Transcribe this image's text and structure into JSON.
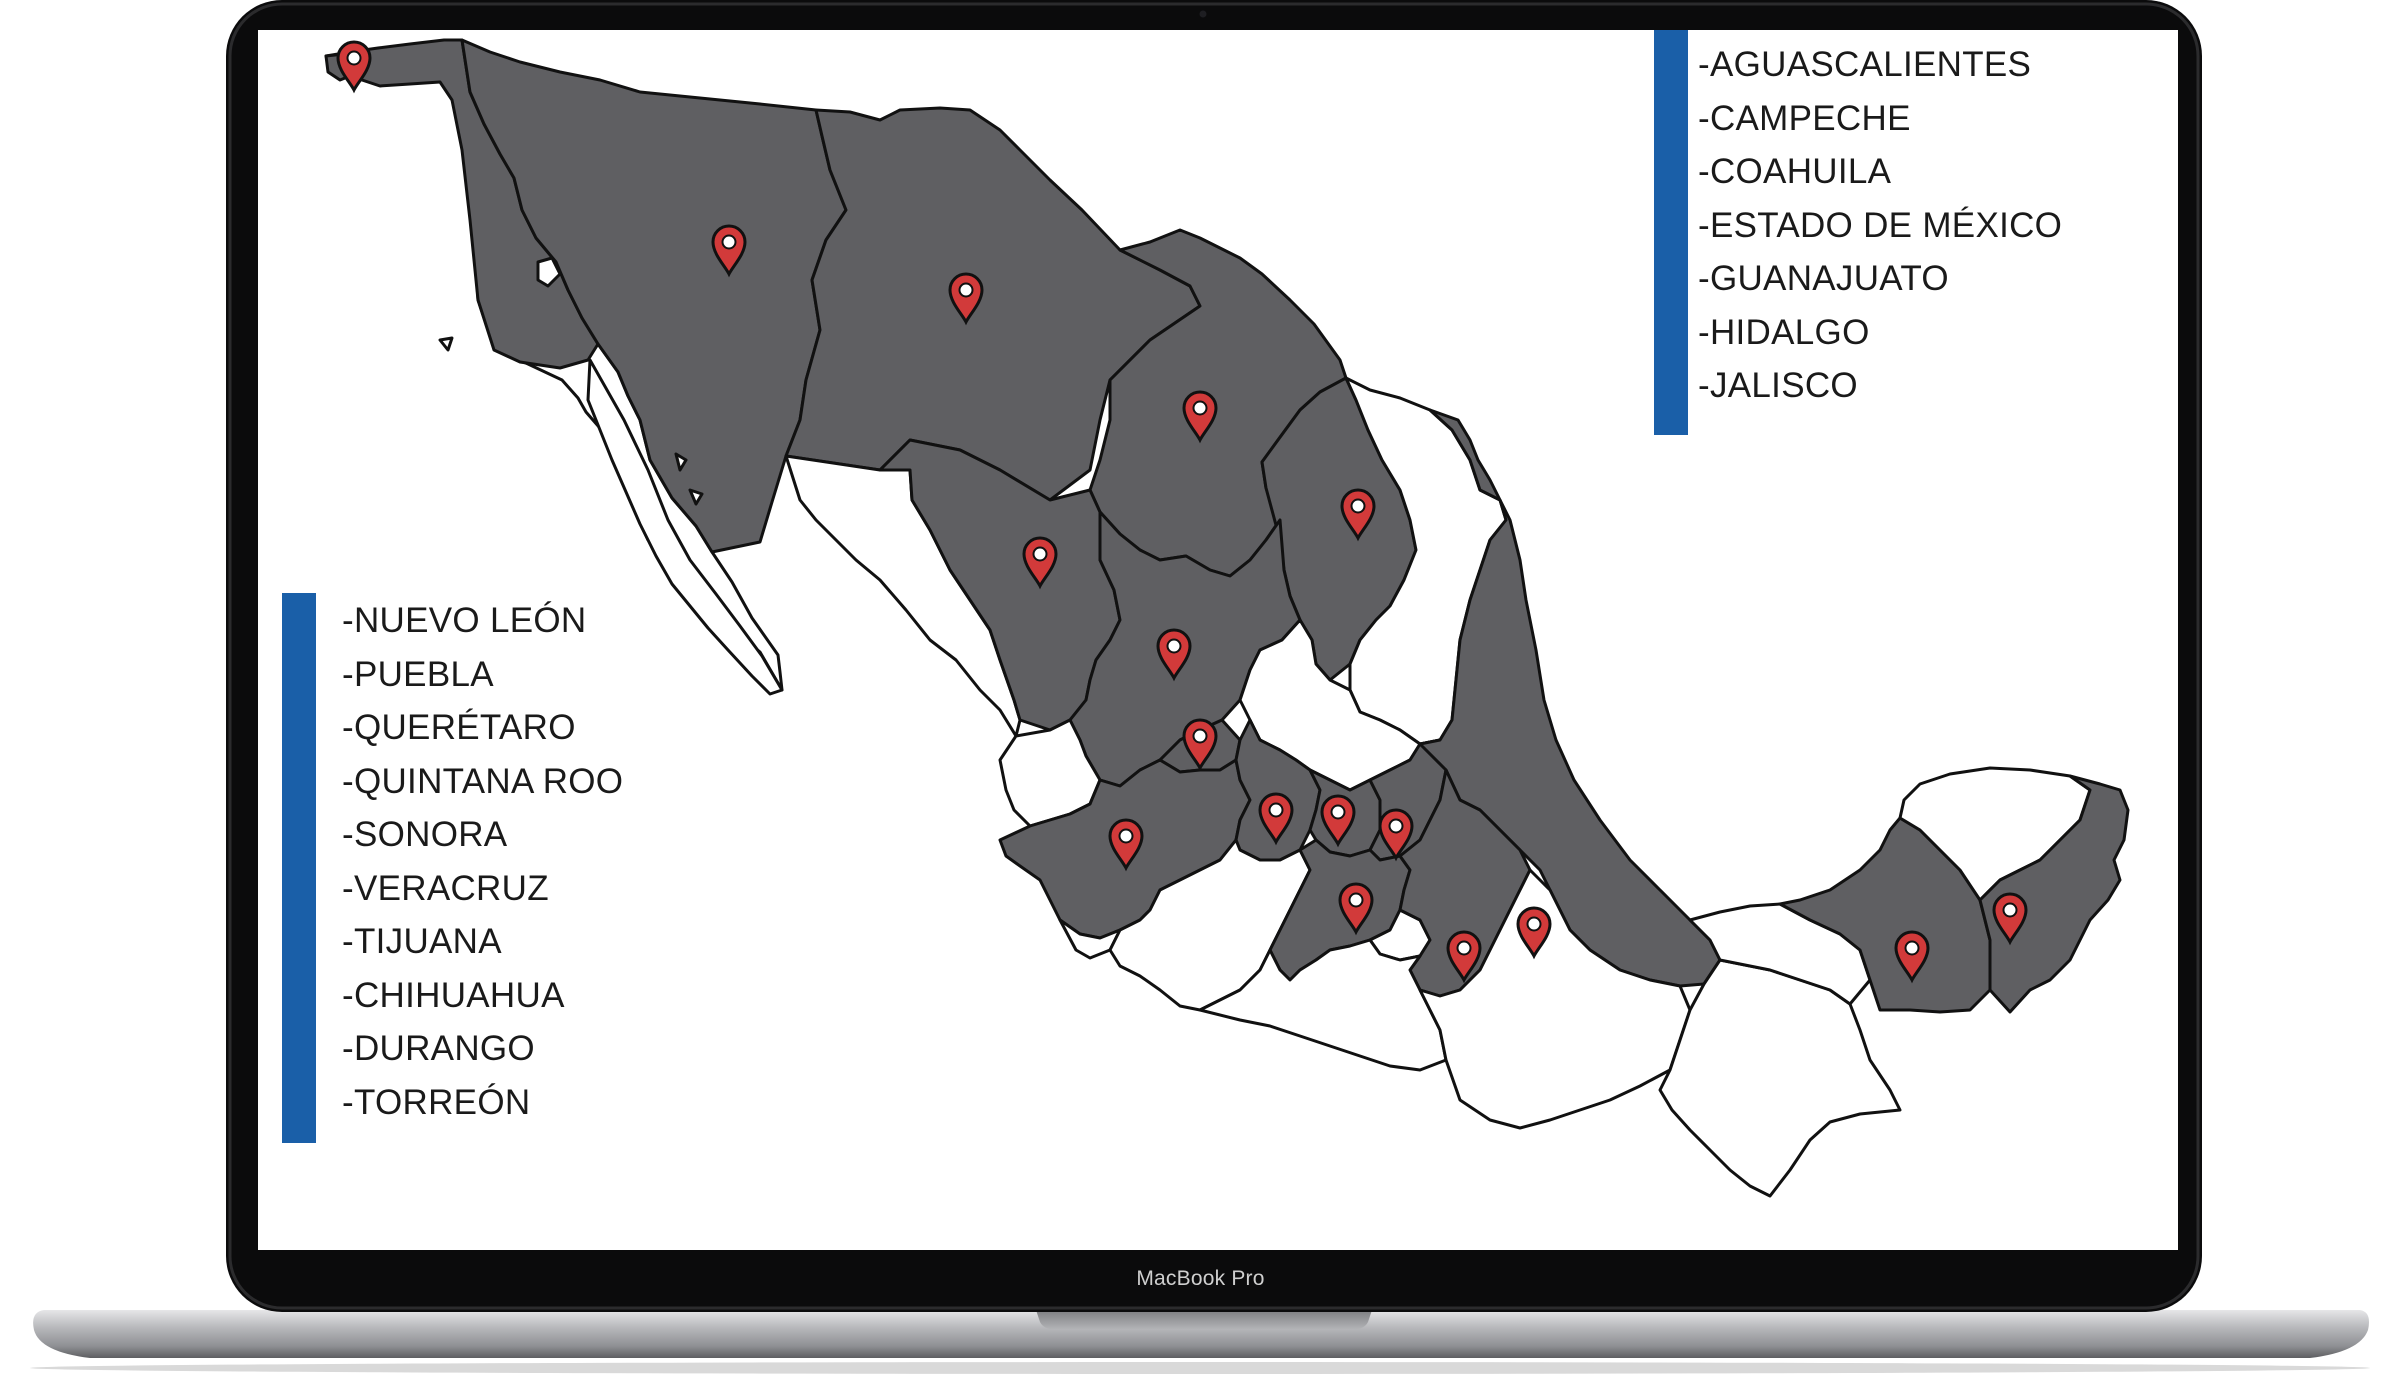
{
  "device": {
    "brand_label": "MacBook Pro"
  },
  "colors": {
    "highlight_fill": "#5f5f62",
    "accent_bar": "#1a5fa8",
    "marker": "#d23a3a",
    "border": "#111111"
  },
  "map": {
    "icon": "map-pin-icon",
    "markers": [
      {
        "id": "tijuana"
      },
      {
        "id": "sonora"
      },
      {
        "id": "chihuahua"
      },
      {
        "id": "coahuila"
      },
      {
        "id": "nuevo-leon"
      },
      {
        "id": "durango"
      },
      {
        "id": "torreon"
      },
      {
        "id": "aguascalientes"
      },
      {
        "id": "jalisco"
      },
      {
        "id": "guanajuato"
      },
      {
        "id": "queretaro"
      },
      {
        "id": "hidalgo"
      },
      {
        "id": "estado-de-mexico"
      },
      {
        "id": "puebla"
      },
      {
        "id": "veracruz"
      },
      {
        "id": "campeche"
      },
      {
        "id": "quintana-roo"
      }
    ]
  },
  "lists": {
    "top": [
      "-AGUASCALIENTES",
      "-CAMPECHE",
      "-COAHUILA",
      "-ESTADO DE MÉXICO",
      "-GUANAJUATO",
      "-HIDALGO",
      "-JALISCO"
    ],
    "bottom": [
      "-NUEVO LEÓN",
      "-PUEBLA",
      "-QUERÉTARO",
      "-QUINTANA ROO",
      "-SONORA",
      "-VERACRUZ",
      "-TIJUANA",
      "-CHIHUAHUA",
      "-DURANGO",
      "-TORREÓN"
    ]
  }
}
